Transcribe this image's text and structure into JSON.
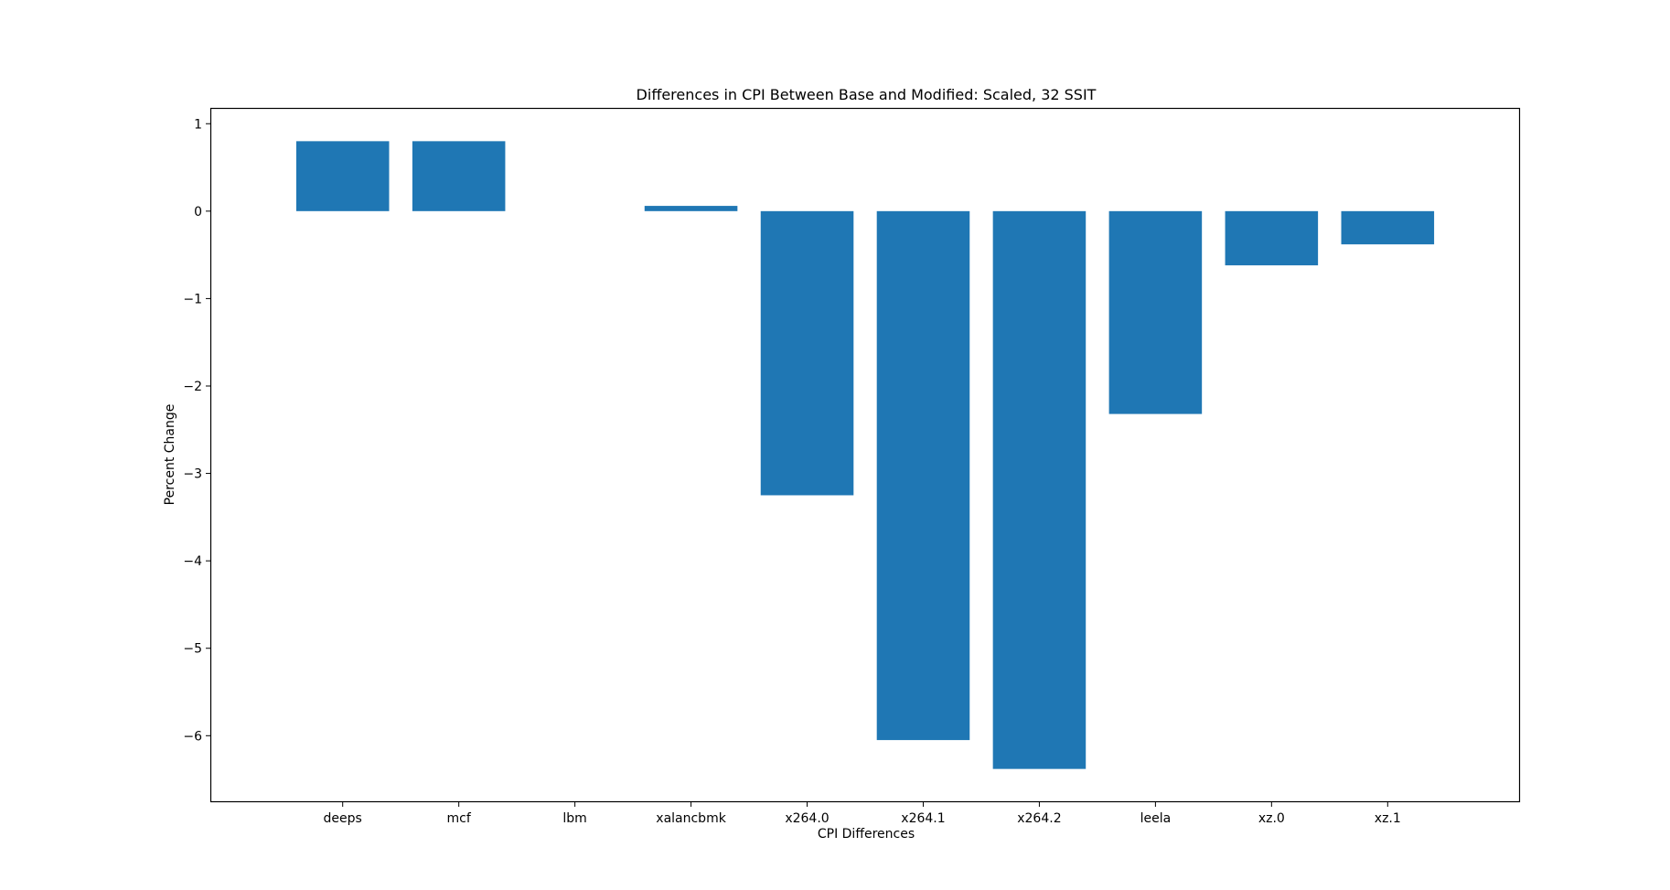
{
  "chart_data": {
    "type": "bar",
    "title": "Differences in CPI Between Base and Modified: Scaled, 32 SSIT",
    "xlabel": "CPI Differences",
    "ylabel": "Percent Change",
    "categories": [
      "deeps",
      "mcf",
      "lbm",
      "xalancbmk",
      "x264.0",
      "x264.1",
      "x264.2",
      "leela",
      "xz.0",
      "xz.1"
    ],
    "values": [
      0.8,
      0.8,
      0.0,
      0.06,
      -3.25,
      -6.05,
      -6.38,
      -2.32,
      -0.62,
      -0.38
    ],
    "ylim": [
      -6.75,
      1.17
    ],
    "yticks": [
      1,
      0,
      -1,
      -2,
      -3,
      -4,
      -5,
      -6
    ],
    "ytick_labels": [
      "1",
      "0",
      "−1",
      "−2",
      "−3",
      "−4",
      "−5",
      "−6"
    ],
    "bar_color": "#1f77b4",
    "grid": false,
    "legend": "none"
  }
}
